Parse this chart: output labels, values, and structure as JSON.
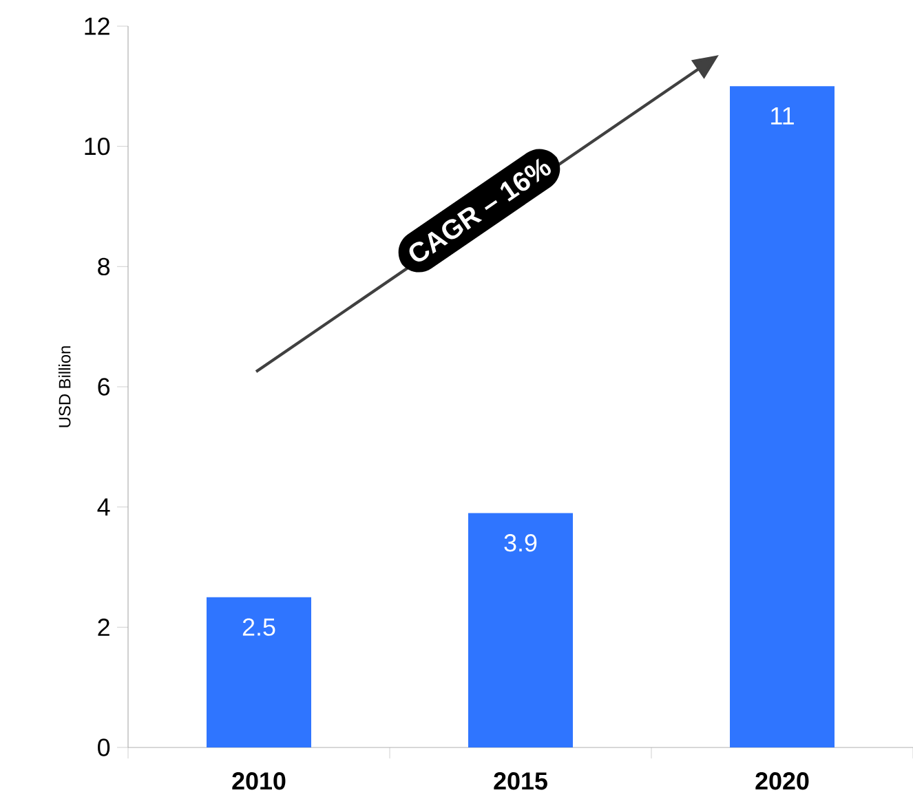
{
  "chart_data": {
    "type": "bar",
    "categories": [
      "2010",
      "2015",
      "2020"
    ],
    "values": [
      2.5,
      3.9,
      11
    ],
    "color": "#2f75ff",
    "ylabel": "USD Billion",
    "ylim": [
      0,
      12
    ],
    "yticks": [
      0,
      2,
      4,
      6,
      8,
      10,
      12
    ],
    "data_labels": true,
    "grid": false,
    "annotations": [
      "CAGR – 16%"
    ]
  }
}
